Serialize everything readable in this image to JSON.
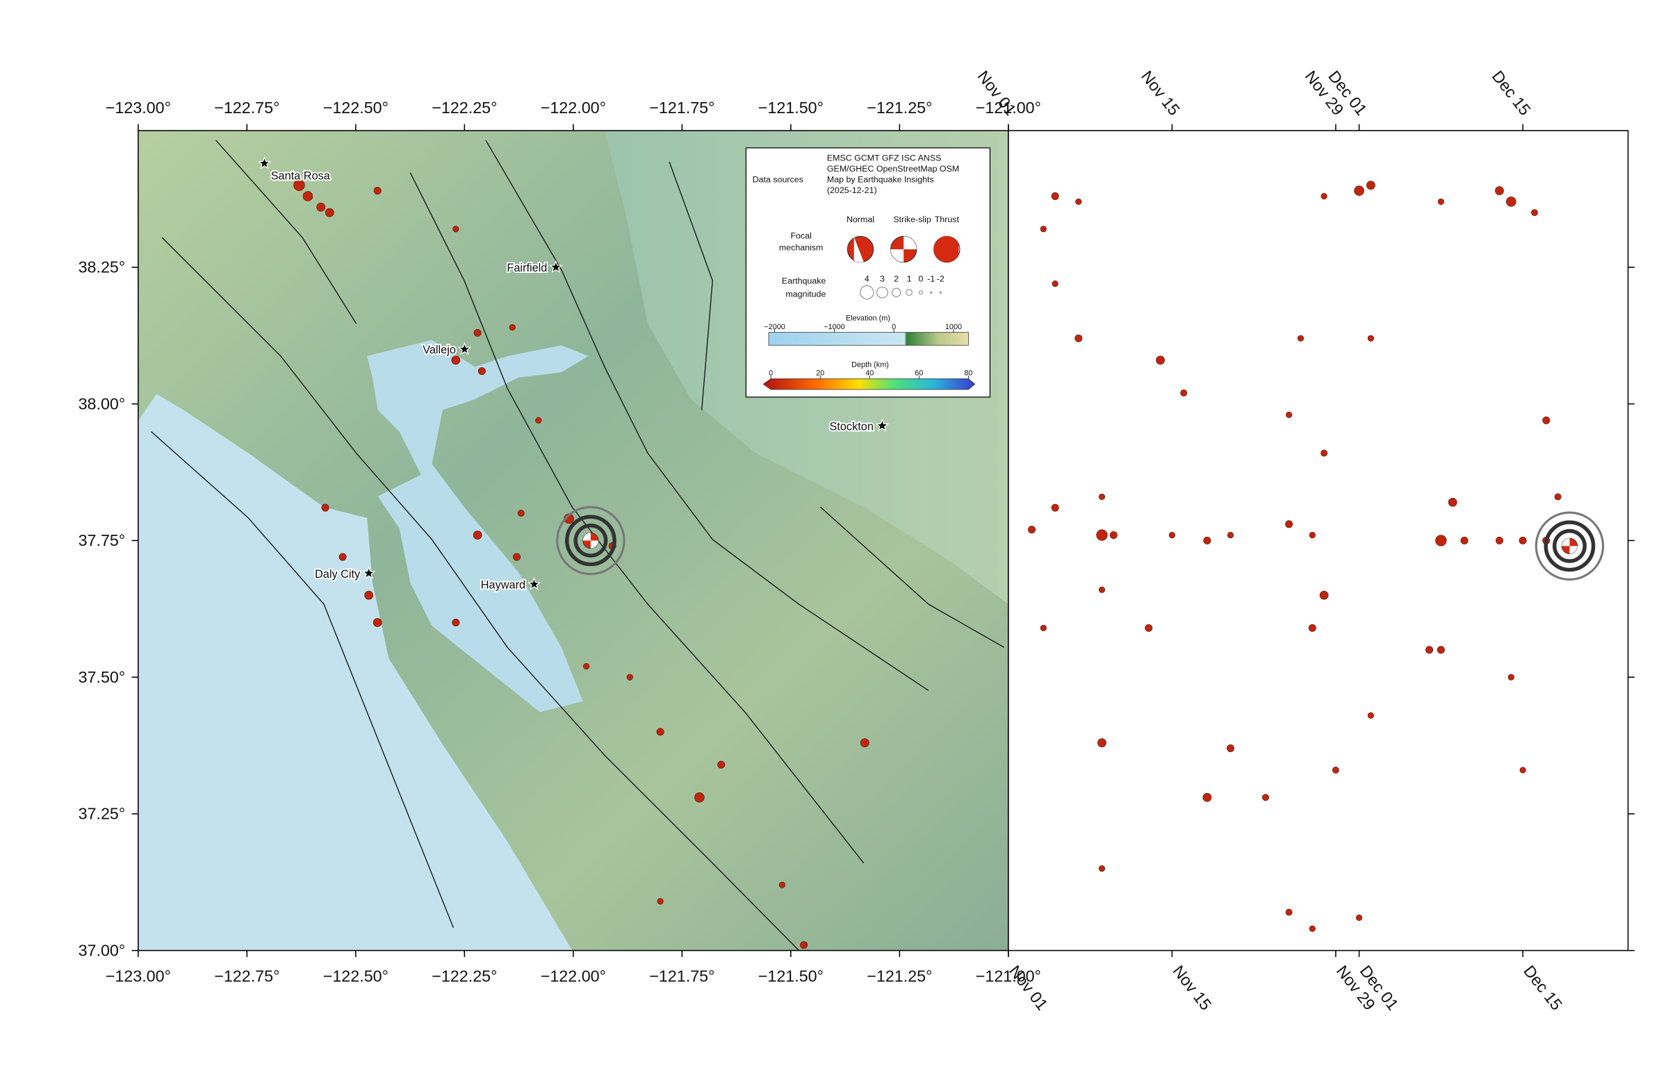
{
  "chart_data": [
    {
      "type": "map",
      "xlim": [
        -123,
        -121
      ],
      "ylim": [
        37,
        38.5
      ],
      "xticks": [
        {
          "value": -123,
          "label": "−123.00°"
        },
        {
          "value": -122.75,
          "label": "−122.75°"
        },
        {
          "value": -122.5,
          "label": "−122.50°"
        },
        {
          "value": -122.25,
          "label": "−122.25°"
        },
        {
          "value": -122,
          "label": "−122.00°"
        },
        {
          "value": -121.75,
          "label": "−121.75°"
        },
        {
          "value": -121.5,
          "label": "−121.50°"
        },
        {
          "value": -121.25,
          "label": "−121.25°"
        },
        {
          "value": -121,
          "label": "−121.00°"
        }
      ],
      "yticks": [
        {
          "value": 37,
          "label": "37.00°"
        },
        {
          "value": 37.25,
          "label": "37.25°"
        },
        {
          "value": 37.5,
          "label": "37.50°"
        },
        {
          "value": 37.75,
          "label": "37.75°"
        },
        {
          "value": 38,
          "label": "38.00°"
        },
        {
          "value": 38.25,
          "label": "38.25°"
        }
      ],
      "color": "#c0260e",
      "cities": [
        {
          "name": "Santa Rosa",
          "lon": -122.71,
          "lat": 38.44
        },
        {
          "name": "Fairfield",
          "lon": -122.04,
          "lat": 38.25
        },
        {
          "name": "Vallejo",
          "lon": -122.25,
          "lat": 38.1
        },
        {
          "name": "Stockton",
          "lon": -121.29,
          "lat": 37.96
        },
        {
          "name": "Daly City",
          "lon": -122.47,
          "lat": 37.69
        },
        {
          "name": "Hayward",
          "lon": -122.09,
          "lat": 37.67
        }
      ],
      "quakes": {
        "lon": [
          -122.63,
          -122.61,
          -122.58,
          -122.56,
          -122.45,
          -122.27,
          -122.22,
          -122.27,
          -122.21,
          -122.14,
          -122.57,
          -122.53,
          -122.47,
          -122.45,
          -122.27,
          -122.22,
          -122.13,
          -122.08,
          -122.12,
          -122.01,
          -121.91,
          -121.97,
          -121.87,
          -121.8,
          -121.71,
          -121.66,
          -121.33,
          -121.52,
          -121.47,
          -121.8
        ],
        "lat": [
          38.4,
          38.38,
          38.36,
          38.35,
          38.39,
          38.32,
          38.13,
          38.08,
          38.06,
          38.14,
          37.81,
          37.72,
          37.65,
          37.6,
          37.6,
          37.76,
          37.72,
          37.97,
          37.8,
          37.79,
          37.74,
          37.52,
          37.5,
          37.4,
          37.28,
          37.34,
          37.38,
          37.12,
          37.01,
          37.09
        ],
        "magnitude": [
          3,
          2.5,
          2,
          2,
          1.5,
          1,
          1.5,
          2,
          1.5,
          1,
          1.5,
          1.5,
          2,
          2,
          1.5,
          2,
          1.5,
          1,
          1.2,
          2.5,
          1.5,
          1,
          1,
          1.5,
          2.5,
          1.5,
          2,
          1,
          1.5,
          1
        ]
      },
      "mainshock": {
        "lon": -121.96,
        "lat": 37.75,
        "magnitude": 4
      }
    },
    {
      "type": "scatter",
      "xlim": [
        "Nov 01",
        "Dec 24"
      ],
      "ylim": [
        37,
        38.5
      ],
      "xticks": [
        "Nov 01",
        "Nov 15",
        "Nov 29",
        "Dec 01",
        "Dec 15"
      ],
      "color": "#c0260e",
      "x": [
        "Nov 05",
        "Nov 07",
        "Nov 04",
        "Nov 28",
        "Dec 01",
        "Dec 02",
        "Dec 08",
        "Dec 13",
        "Dec 14",
        "Dec 16",
        "Nov 05",
        "Nov 07",
        "Nov 26",
        "Dec 02",
        "Nov 14",
        "Nov 16",
        "Nov 25",
        "Dec 17",
        "Nov 28",
        "Nov 05",
        "Nov 09",
        "Dec 09",
        "Dec 18",
        "Nov 03",
        "Nov 09",
        "Nov 10",
        "Nov 15",
        "Nov 18",
        "Nov 20",
        "Nov 25",
        "Nov 27",
        "Dec 08",
        "Dec 10",
        "Dec 13",
        "Dec 15",
        "Dec 17",
        "Nov 09",
        "Nov 28",
        "Nov 27",
        "Nov 13",
        "Nov 04",
        "Dec 07",
        "Dec 08",
        "Nov 09",
        "Nov 20",
        "Nov 18",
        "Nov 23",
        "Nov 29",
        "Nov 25",
        "Nov 27",
        "Dec 14",
        "Dec 02",
        "Dec 15",
        "Dec 01",
        "Nov 09"
      ],
      "y": [
        38.38,
        38.37,
        38.32,
        38.38,
        38.39,
        38.4,
        38.37,
        38.39,
        38.37,
        38.35,
        38.22,
        38.12,
        38.12,
        38.12,
        38.08,
        38.02,
        37.98,
        37.97,
        37.91,
        37.81,
        37.83,
        37.82,
        37.83,
        37.77,
        37.76,
        37.76,
        37.76,
        37.75,
        37.76,
        37.78,
        37.76,
        37.75,
        37.75,
        37.75,
        37.75,
        37.75,
        37.66,
        37.65,
        37.59,
        37.59,
        37.59,
        37.55,
        37.55,
        37.38,
        37.37,
        37.28,
        37.28,
        37.33,
        37.07,
        37.04,
        37.5,
        37.43,
        37.33,
        37.06,
        37.15
      ],
      "size": [
        1.5,
        1,
        1,
        1,
        2.5,
        2,
        1,
        2,
        2.5,
        1.2,
        1,
        1.5,
        1,
        1,
        2,
        1.2,
        1,
        1.5,
        1.2,
        1.5,
        1,
        2,
        1.2,
        1.5,
        3,
        1.5,
        1,
        1.5,
        1,
        1.5,
        1,
        3,
        1.5,
        1.5,
        1.5,
        1.5,
        1,
        2,
        1.5,
        1.5,
        1,
        1.5,
        1.5,
        2,
        1.5,
        2,
        1.2,
        1.2,
        1.2,
        1,
        1,
        1,
        1,
        1,
        1
      ],
      "mainshock": {
        "x": "Dec 19",
        "y": 37.74,
        "size": 4
      }
    }
  ],
  "legend": {
    "sources_title": "Data sources",
    "sources": [
      "EMSC GCMT GFZ ISC ANSS",
      "GEM/GHEC OpenStreetMap OSM",
      "Map by Earthquake Insights",
      "(2025-12-21)"
    ],
    "focal_title": [
      "Focal",
      "mechanism"
    ],
    "focal_types": [
      "Normal",
      "Strike-slip",
      "Thrust"
    ],
    "magnitude_title": [
      "Earthquake",
      "magnitude"
    ],
    "magnitudes": [
      4,
      3,
      2,
      1,
      0,
      -1,
      -2
    ],
    "elevation_title": "Elevation (m)",
    "elevation_lim": [
      -2100,
      1250
    ],
    "elevation_ticks": [
      {
        "value": -2000,
        "label": "−2000"
      },
      {
        "value": -1000,
        "label": "−1000"
      },
      0,
      1000
    ],
    "depth_title": "Depth (km)",
    "depth_lim": [
      0,
      80
    ],
    "depth_ticks": [
      0,
      20,
      40,
      60,
      80
    ]
  }
}
